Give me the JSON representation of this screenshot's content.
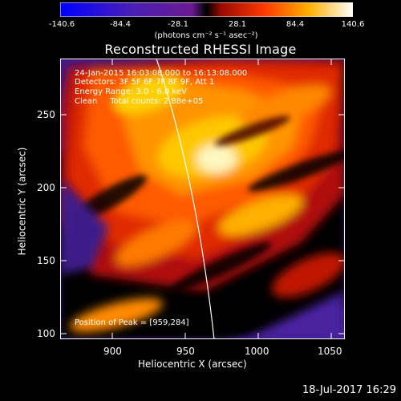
{
  "colorbar": {
    "ticks": [
      "-140.6",
      "-84.4",
      "-28.1",
      "28.1",
      "84.4",
      "140.6"
    ],
    "units": "(photons cm⁻² s⁻¹ asec⁻²)",
    "colors": [
      "#0000ff",
      "#5a1fb0",
      "#7a1fa0",
      "#b41010",
      "#ff5a00",
      "#ffd400",
      "#ffffff"
    ]
  },
  "image": {
    "title": "Reconstructed RHESSI Image",
    "time_range": "24-Jan-2015 16:03:08.000 to 16:13:08.000",
    "detectors": "Detectors: 3F 5F 6F 7F 8F 9F, Att 1",
    "energy_range": "Energy Range: 3.0 - 6.0 keV",
    "clean_info": "Clean     Total counts: 2.88e+05",
    "peak_position": "Position of Peak = [959,284]"
  },
  "axes": {
    "xlabel": "Heliocentric X (arcsec)",
    "ylabel": "Heliocentric Y (arcsec)",
    "xticks": [
      "900",
      "950",
      "1000",
      "1050"
    ],
    "yticks": [
      "100",
      "150",
      "200",
      "250"
    ],
    "xlim": [
      865,
      1055
    ],
    "ylim": [
      98,
      285
    ],
    "xtick_values": [
      900,
      950,
      1000,
      1050
    ],
    "ytick_values": [
      100,
      150,
      200,
      250
    ]
  },
  "timestamp": "18-Jul-2017 16:29"
}
